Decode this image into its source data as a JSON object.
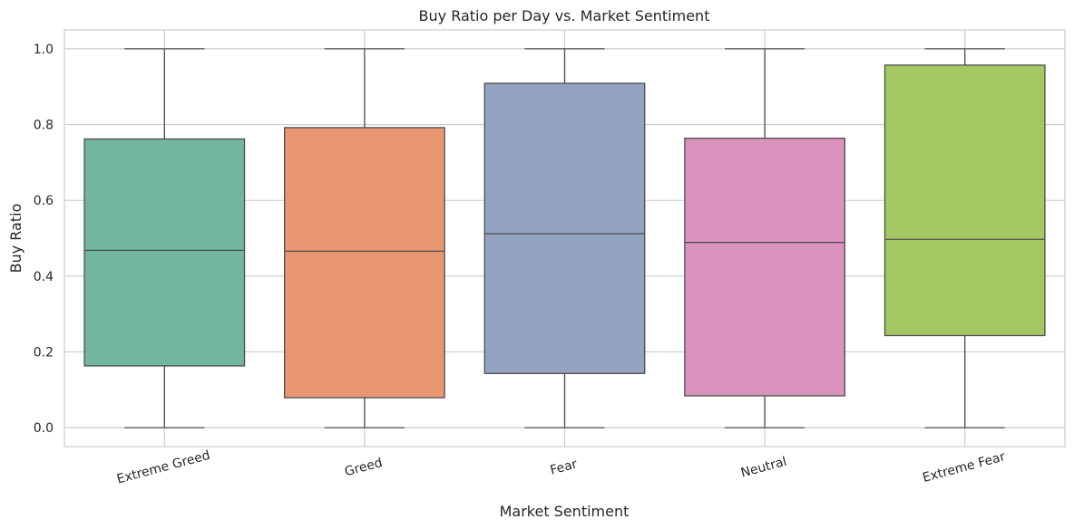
{
  "chart_data": {
    "type": "box",
    "title": "Buy Ratio per Day vs. Market Sentiment",
    "xlabel": "Market Sentiment",
    "ylabel": "Buy Ratio",
    "ylim": [
      -0.05,
      1.05
    ],
    "yticks": [
      0.0,
      0.2,
      0.4,
      0.6,
      0.8,
      1.0
    ],
    "ytick_labels": [
      "0.0",
      "0.2",
      "0.4",
      "0.6",
      "0.8",
      "1.0"
    ],
    "grid": true,
    "categories": [
      "Extreme Greed",
      "Greed",
      "Fear",
      "Neutral",
      "Extreme Fear"
    ],
    "boxes": [
      {
        "category": "Extreme Greed",
        "min": 0.0,
        "q1": 0.163,
        "median": 0.468,
        "q3": 0.762,
        "max": 1.0,
        "color": "#73b6a0"
      },
      {
        "category": "Greed",
        "min": 0.0,
        "q1": 0.079,
        "median": 0.466,
        "q3": 0.792,
        "max": 1.0,
        "color": "#e99673"
      },
      {
        "category": "Fear",
        "min": 0.0,
        "q1": 0.143,
        "median": 0.512,
        "q3": 0.909,
        "max": 1.0,
        "color": "#94a3c2"
      },
      {
        "category": "Neutral",
        "min": 0.0,
        "q1": 0.084,
        "median": 0.489,
        "q3": 0.764,
        "max": 1.0,
        "color": "#db93be"
      },
      {
        "category": "Extreme Fear",
        "min": 0.0,
        "q1": 0.243,
        "median": 0.497,
        "q3": 0.957,
        "max": 1.0,
        "color": "#a2c763"
      }
    ]
  }
}
